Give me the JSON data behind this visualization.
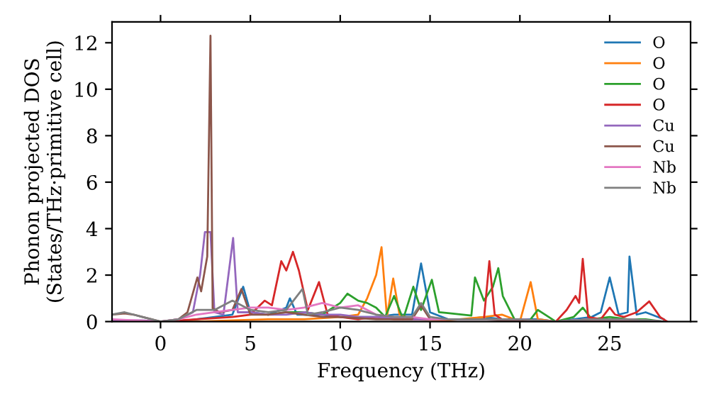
{
  "chart_data": {
    "type": "line",
    "xlabel": "Frequency (THz)",
    "ylabel": "Phonon projected DOS\n(States/THz·primitive cell)",
    "xlim": [
      -2.7,
      29.5
    ],
    "ylim": [
      0,
      12.9
    ],
    "xticks": [
      0,
      5,
      10,
      15,
      20,
      25
    ],
    "yticks": [
      0,
      2,
      4,
      6,
      8,
      10,
      12
    ],
    "legend": "top right",
    "grid": false,
    "series": [
      {
        "name": "O",
        "color": "#1f77b4",
        "x": [
          1,
          2,
          3,
          4,
          4.6,
          5,
          6,
          7,
          7.2,
          7.6,
          8,
          9,
          10,
          11,
          12,
          13,
          14,
          14.5,
          15,
          16,
          17,
          18,
          19,
          20,
          21,
          22,
          23,
          24,
          24.5,
          25,
          25.5,
          26,
          26.1,
          26.5,
          27,
          28
        ],
        "values": [
          0,
          0.1,
          0.2,
          0.3,
          1.5,
          0.4,
          0.3,
          0.6,
          1.0,
          0.3,
          0.3,
          0.3,
          0.2,
          0.2,
          0.2,
          0.3,
          0.3,
          2.5,
          0.4,
          0.1,
          0.1,
          0.2,
          0.1,
          0.1,
          0.1,
          0,
          0.1,
          0.2,
          0.4,
          1.9,
          0.3,
          0.4,
          2.8,
          0.3,
          0.4,
          0.1
        ]
      },
      {
        "name": "O",
        "color": "#ff7f0e",
        "x": [
          -2.7,
          0,
          2,
          4,
          6,
          8,
          10,
          11,
          11.5,
          12,
          12.3,
          12.6,
          12.95,
          13.3,
          14,
          16,
          18,
          19,
          20,
          20.6,
          21,
          22,
          24
        ],
        "values": [
          0,
          0,
          0,
          0.05,
          0.1,
          0.1,
          0.2,
          0.3,
          1.0,
          2.0,
          3.2,
          0.2,
          1.85,
          0.3,
          0.1,
          0.05,
          0.2,
          0.3,
          0,
          1.7,
          0.1,
          0,
          0.1
        ]
      },
      {
        "name": "O",
        "color": "#2ca02c",
        "x": [
          6,
          7,
          8,
          9,
          10,
          10.4,
          11,
          11.5,
          12,
          12.5,
          13,
          13.5,
          14.07,
          14.5,
          15.1,
          15.5,
          15.9,
          17.3,
          17.5,
          18,
          18.5,
          18.8,
          19.05,
          19.7,
          20.5,
          21,
          22,
          23,
          23.5,
          24,
          25,
          26,
          27,
          28
        ],
        "values": [
          0.3,
          0.4,
          0.4,
          0.3,
          0.8,
          1.2,
          0.9,
          0.8,
          0.6,
          0.2,
          1.1,
          0.1,
          1.5,
          0.5,
          1.8,
          0.4,
          0.37,
          0.26,
          1.9,
          0.9,
          1.5,
          2.3,
          1.1,
          0.1,
          0,
          0.5,
          0,
          0.2,
          0.6,
          0.1,
          0.2,
          0.1,
          0.1,
          0
        ]
      },
      {
        "name": "O",
        "color": "#d62728",
        "x": [
          -2.7,
          0,
          2,
          4,
          5,
          5.8,
          6.2,
          6.72,
          7.0,
          7.37,
          7.7,
          8.2,
          8.82,
          9.3,
          10,
          11,
          12,
          13,
          14,
          15,
          16,
          17,
          18,
          18.3,
          18.6,
          19,
          20,
          21,
          22,
          22.6,
          23.1,
          23.3,
          23.5,
          23.8,
          24.5,
          25,
          25.3,
          25.8,
          26.5,
          27.2,
          27.8,
          28.2
        ],
        "values": [
          0,
          0,
          0.1,
          0.2,
          0.3,
          0.9,
          0.7,
          2.6,
          2.2,
          3.0,
          2.2,
          0.5,
          1.7,
          0.3,
          0.2,
          0.1,
          0.2,
          0.1,
          0.1,
          0.1,
          0.1,
          0.1,
          0.1,
          2.6,
          0.3,
          0.1,
          0,
          0,
          0,
          0.5,
          1.1,
          0.8,
          2.7,
          0.2,
          0.1,
          0.6,
          0.3,
          0.2,
          0.4,
          0.87,
          0.2,
          0
        ]
      },
      {
        "name": "Cu",
        "color": "#9467bd",
        "x": [
          -2.7,
          -1,
          0,
          1,
          1.8,
          2.2,
          2.47,
          2.78,
          3.0,
          3.5,
          4.04,
          4.3,
          5,
          6,
          7,
          8,
          9,
          10,
          11,
          12,
          14,
          16,
          18,
          20,
          22,
          24,
          26,
          28
        ],
        "values": [
          0.05,
          0.05,
          0,
          0.1,
          0.4,
          2.0,
          3.85,
          3.85,
          0.4,
          0.3,
          3.6,
          0.4,
          0.4,
          0.3,
          0.3,
          0.4,
          0.3,
          0.3,
          0.2,
          0.2,
          0.1,
          0.1,
          0.1,
          0.1,
          0,
          0.1,
          0.1,
          0
        ]
      },
      {
        "name": "Cu",
        "color": "#8c564b",
        "x": [
          -2.7,
          -2,
          -1.5,
          -1,
          0,
          1,
          1.5,
          2.05,
          2.26,
          2.6,
          2.78,
          2.9,
          3.3,
          4,
          4.5,
          5,
          6,
          7,
          8,
          9,
          10,
          12,
          14,
          14.5,
          15,
          16,
          18,
          20,
          22,
          24,
          26,
          28
        ],
        "values": [
          0.3,
          0.35,
          0.3,
          0.2,
          0,
          0.1,
          0.4,
          1.9,
          1.3,
          2.8,
          12.3,
          0.57,
          0.4,
          0.5,
          1.4,
          0.3,
          0.3,
          0.4,
          0.3,
          0.2,
          0.2,
          0.1,
          0.1,
          0.7,
          0.1,
          0.1,
          0.1,
          0,
          0,
          0,
          0,
          0
        ]
      },
      {
        "name": "Nb",
        "color": "#e377c2",
        "x": [
          -2.7,
          0,
          1,
          2,
          3,
          4,
          5,
          6,
          7,
          8,
          9,
          10,
          11,
          12,
          13,
          14,
          15,
          16,
          18,
          20,
          22,
          24,
          26,
          28
        ],
        "values": [
          0.1,
          0,
          0.1,
          0.3,
          0.4,
          0.5,
          0.6,
          0.6,
          0.5,
          0.6,
          0.8,
          0.6,
          0.7,
          0.3,
          0.2,
          0.2,
          0.1,
          0.1,
          0.1,
          0.1,
          0,
          0.1,
          0.1,
          0
        ]
      },
      {
        "name": "Nb",
        "color": "#7f7f7f",
        "x": [
          -2.7,
          -2,
          -1,
          0,
          1,
          2,
          3,
          4,
          5,
          6,
          7,
          7.9,
          8.2,
          9,
          10,
          11,
          12,
          13,
          14,
          14.5,
          15,
          16,
          18,
          20,
          22,
          24,
          26,
          28
        ],
        "values": [
          0.3,
          0.4,
          0.2,
          0,
          0.1,
          0.5,
          0.5,
          0.9,
          0.5,
          0.4,
          0.5,
          1.4,
          0.3,
          0.4,
          0.6,
          0.5,
          0.3,
          0.2,
          0.2,
          0.8,
          0.2,
          0.1,
          0.1,
          0.1,
          0,
          0.1,
          0.1,
          0
        ]
      }
    ]
  }
}
